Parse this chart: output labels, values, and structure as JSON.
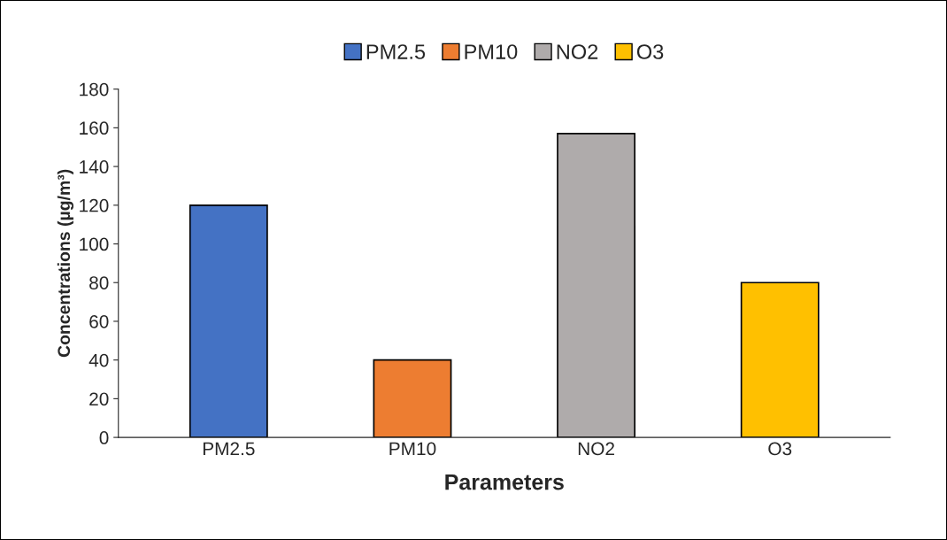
{
  "chart_data": {
    "type": "bar",
    "xlabel": "Parameters",
    "ylabel": "Concentrations (µg/m³)",
    "categories": [
      "PM2.5",
      "PM10",
      "NO2",
      "O3"
    ],
    "series": [
      {
        "name": "PM2.5",
        "color": "#4472c4",
        "values": [
          120,
          null,
          null,
          null
        ]
      },
      {
        "name": "PM10",
        "color": "#ed7d31",
        "values": [
          null,
          40,
          null,
          null
        ]
      },
      {
        "name": "NO2",
        "color": "#afabab",
        "values": [
          null,
          null,
          157,
          null
        ]
      },
      {
        "name": "O3",
        "color": "#ffc000",
        "values": [
          null,
          null,
          null,
          80
        ]
      }
    ],
    "ylim": [
      0,
      180
    ],
    "yticks": [
      0,
      20,
      40,
      60,
      80,
      100,
      120,
      140,
      160,
      180
    ],
    "grid": false,
    "legend": "top"
  }
}
